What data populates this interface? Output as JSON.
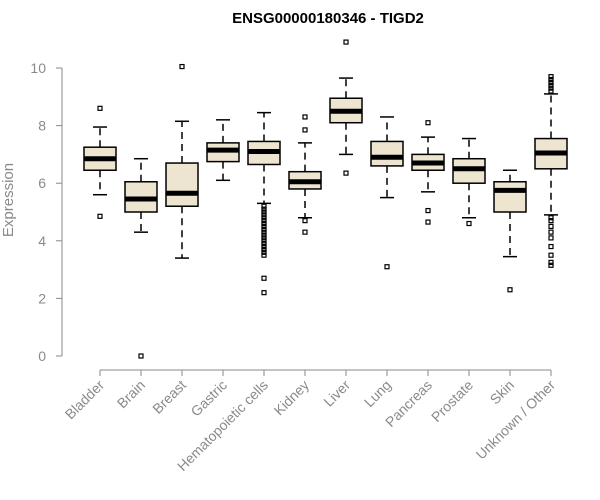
{
  "chart_data": {
    "type": "boxplot",
    "title": "ENSG00000180346 - TIGD2",
    "xlabel": "",
    "ylabel": "Expression",
    "ylim": [
      0,
      10
    ],
    "yticks": [
      0,
      2,
      4,
      6,
      8,
      10
    ],
    "grid": false,
    "categories": [
      "Bladder",
      "Brain",
      "Breast",
      "Gastric",
      "Hematopoietic cells",
      "Kidney",
      "Liver",
      "Lung",
      "Pancreas",
      "Prostate",
      "Skin",
      "Unknown / Other"
    ],
    "boxes": [
      {
        "min": 5.6,
        "q1": 6.45,
        "median": 6.85,
        "q3": 7.25,
        "max": 7.95,
        "outliers": [
          8.6,
          4.85
        ]
      },
      {
        "min": 4.3,
        "q1": 5.0,
        "median": 5.45,
        "q3": 6.05,
        "max": 6.85,
        "outliers": [
          0.0
        ]
      },
      {
        "min": 3.4,
        "q1": 5.2,
        "median": 5.65,
        "q3": 6.7,
        "max": 8.15,
        "outliers": [
          10.05
        ]
      },
      {
        "min": 6.1,
        "q1": 6.75,
        "median": 7.15,
        "q3": 7.4,
        "max": 8.2,
        "outliers": []
      },
      {
        "min": 5.3,
        "q1": 6.65,
        "median": 7.1,
        "q3": 7.45,
        "max": 8.45,
        "outliers": [
          5.2,
          5.1,
          5.0,
          4.9,
          4.8,
          4.7,
          4.6,
          4.5,
          4.4,
          4.3,
          4.2,
          4.1,
          4.0,
          3.9,
          3.8,
          3.7,
          3.6,
          3.5,
          2.7,
          2.2
        ]
      },
      {
        "min": 4.8,
        "q1": 5.8,
        "median": 6.05,
        "q3": 6.4,
        "max": 7.4,
        "outliers": [
          8.3,
          7.85,
          4.7,
          4.3
        ]
      },
      {
        "min": 7.0,
        "q1": 8.1,
        "median": 8.5,
        "q3": 8.95,
        "max": 9.65,
        "outliers": [
          10.9,
          6.35
        ]
      },
      {
        "min": 5.5,
        "q1": 6.6,
        "median": 6.9,
        "q3": 7.45,
        "max": 8.3,
        "outliers": [
          3.1
        ]
      },
      {
        "min": 5.7,
        "q1": 6.45,
        "median": 6.7,
        "q3": 7.0,
        "max": 7.6,
        "outliers": [
          8.1,
          5.05,
          4.65
        ]
      },
      {
        "min": 4.8,
        "q1": 6.0,
        "median": 6.5,
        "q3": 6.85,
        "max": 7.55,
        "outliers": [
          4.6
        ]
      },
      {
        "min": 3.45,
        "q1": 5.0,
        "median": 5.75,
        "q3": 6.05,
        "max": 6.45,
        "outliers": [
          2.3
        ]
      },
      {
        "min": 4.9,
        "q1": 6.5,
        "median": 7.05,
        "q3": 7.55,
        "max": 9.1,
        "outliers": [
          9.7,
          9.6,
          9.5,
          9.4,
          9.3,
          9.2,
          4.8,
          4.7,
          4.5,
          4.3,
          4.1,
          3.8,
          3.5,
          3.25,
          3.15
        ]
      }
    ]
  }
}
